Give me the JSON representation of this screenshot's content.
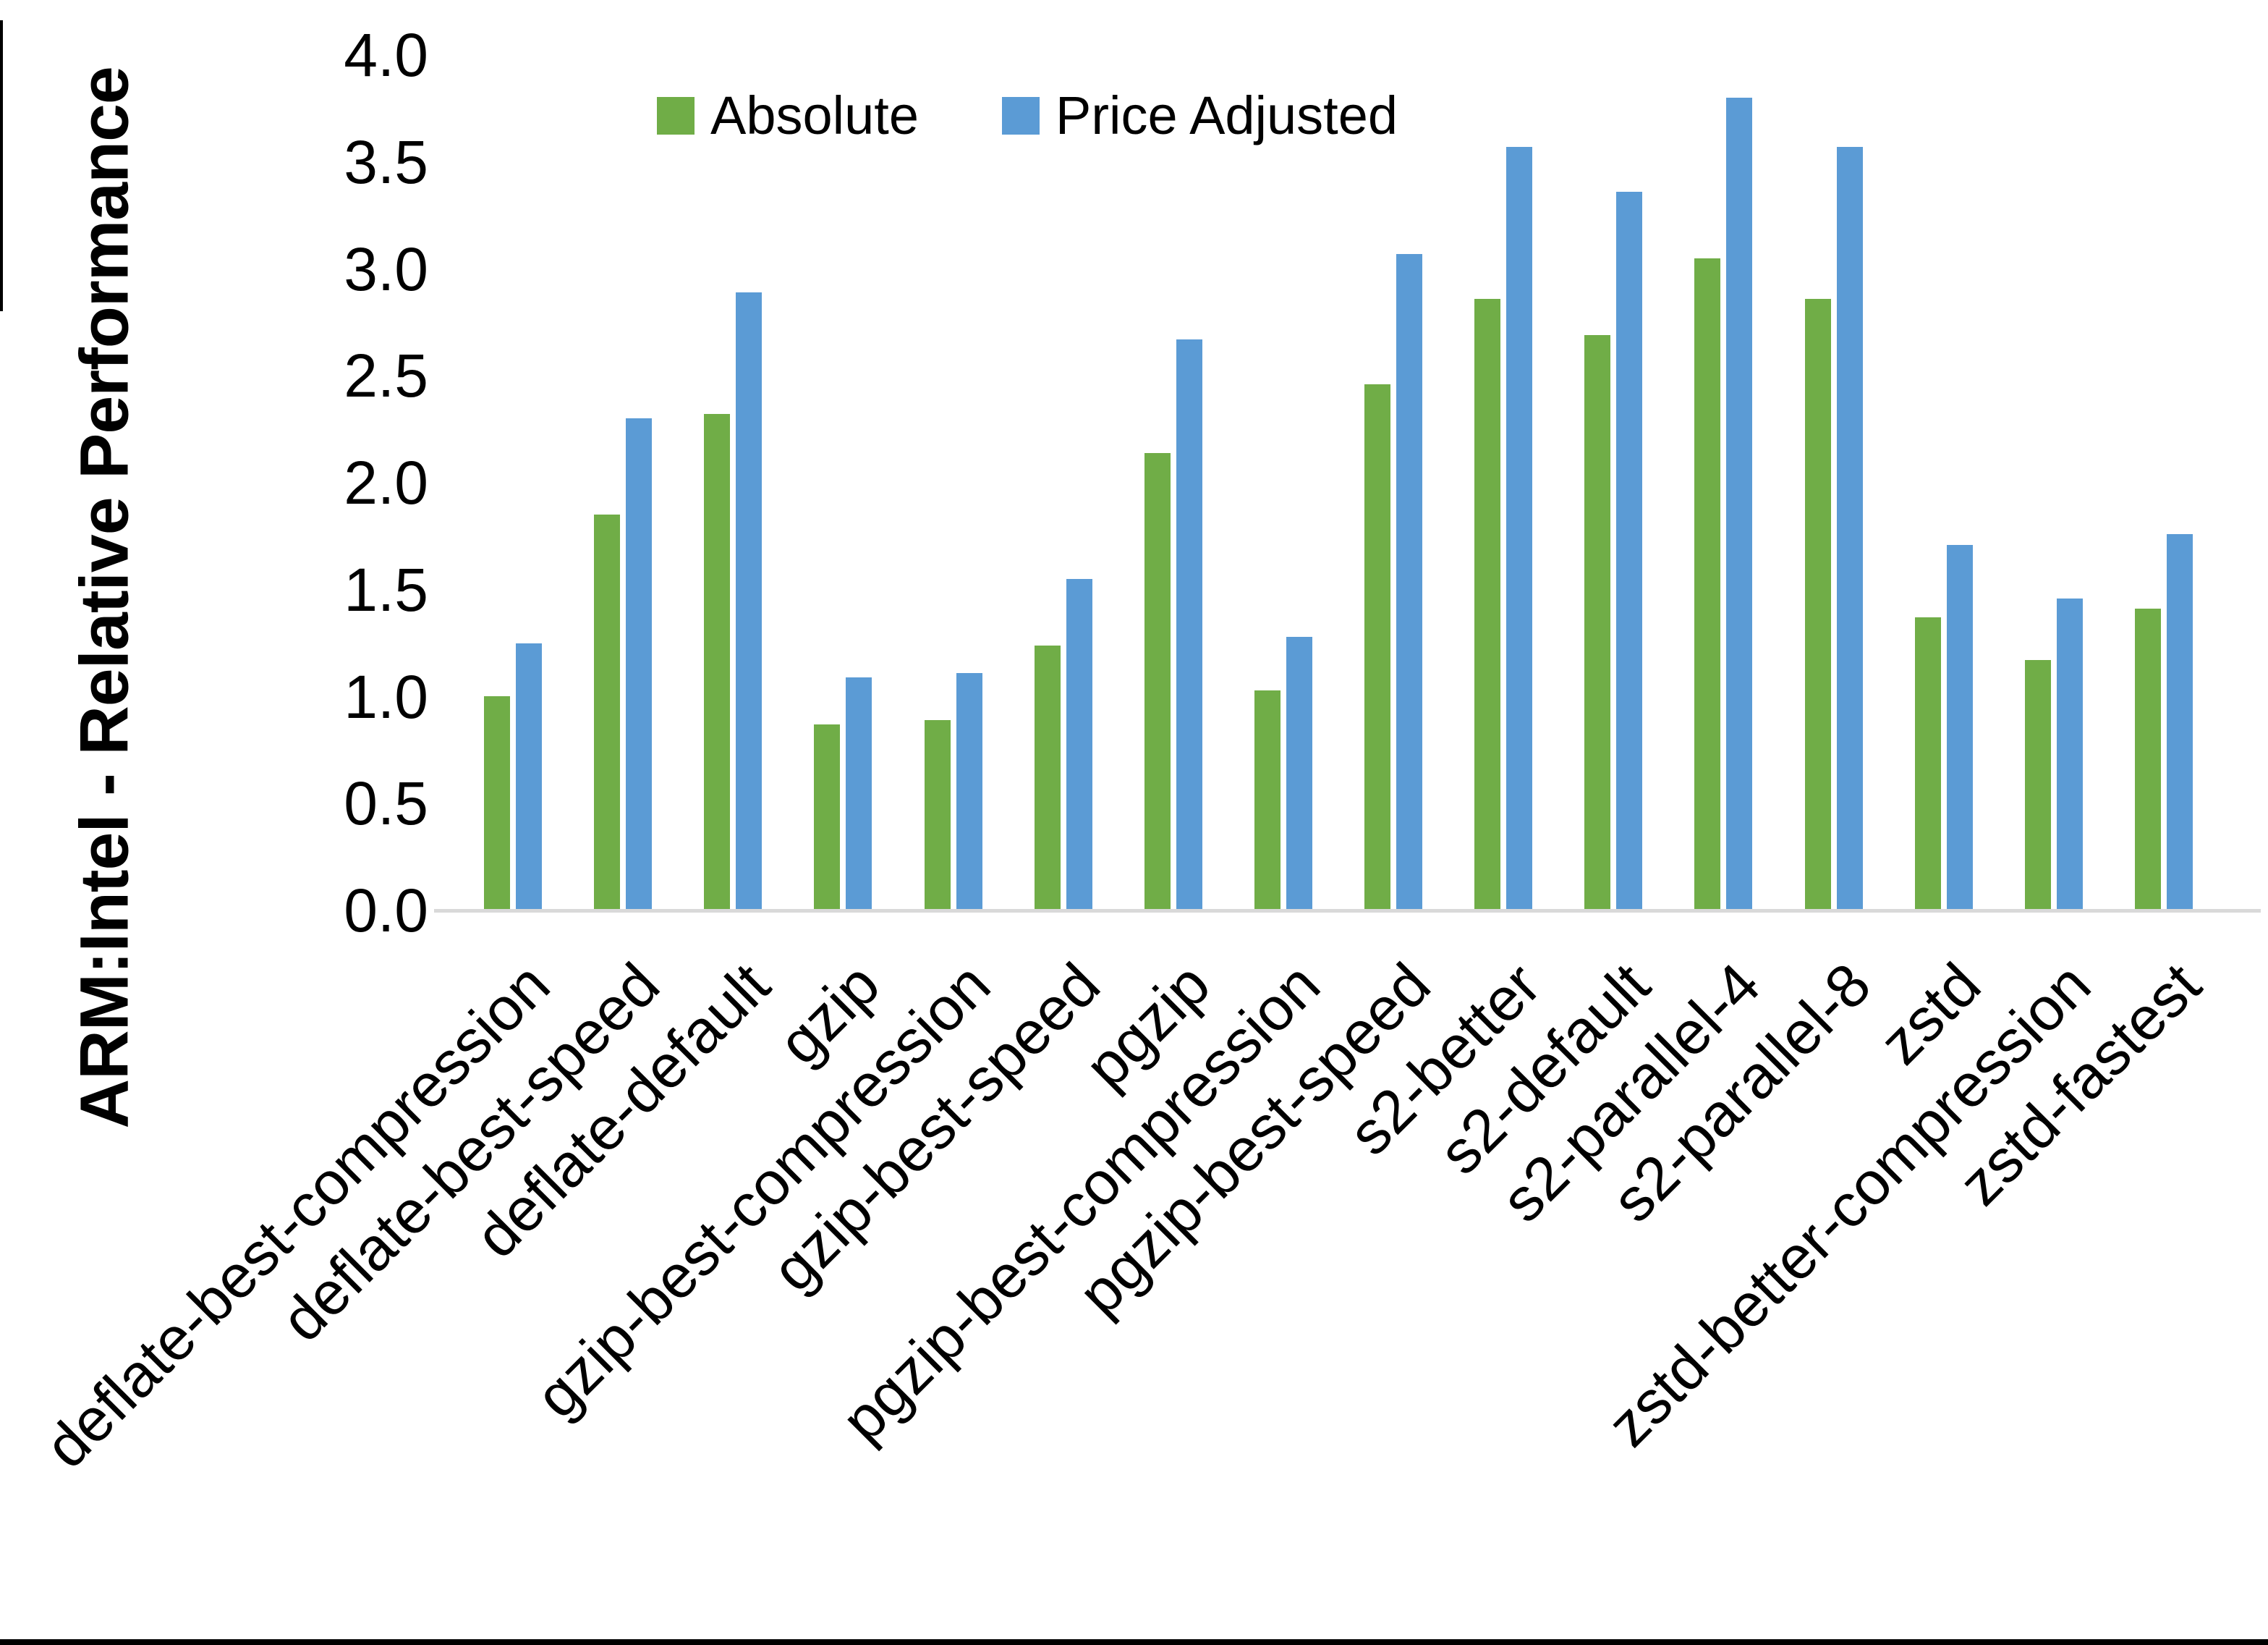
{
  "page": {
    "background": "#ffffff",
    "bottom_border_color": "#000000",
    "left_edge_mark_color": "#000000"
  },
  "legend": {
    "items": [
      {
        "label": "Absolute",
        "color": "#70AD47"
      },
      {
        "label": "Price Adjusted",
        "color": "#5B9BD5"
      }
    ]
  },
  "chart_data": {
    "type": "bar",
    "title": "",
    "xlabel": "",
    "ylabel": "ARM:Intel - Relative Performance",
    "ylim": [
      0.0,
      4.0
    ],
    "ytick_step": 0.5,
    "ytick_labels": [
      "0.0",
      "0.5",
      "1.0",
      "1.5",
      "2.0",
      "2.5",
      "3.0",
      "3.5",
      "4.0"
    ],
    "grid": false,
    "legend_position": "top-center",
    "axis_line_color": "#D9D9D9",
    "text_color": "#000000",
    "categories": [
      "deflate-best-compression",
      "deflate-best-speed",
      "deflate-default",
      "gzip",
      "gzip-best-compression",
      "gzip-best-speed",
      "pgzip",
      "pgzip-best-compression",
      "pgzip-best-speed",
      "s2-better",
      "s2-default",
      "s2-parallel-4",
      "s2-parallel-8",
      "zstd",
      "zstd-better-compression",
      "zstd-fastest"
    ],
    "series": [
      {
        "name": "Absolute",
        "color": "#70AD47",
        "values": [
          1.0,
          1.85,
          2.32,
          0.87,
          0.89,
          1.24,
          2.14,
          1.03,
          2.46,
          2.86,
          2.69,
          3.05,
          2.86,
          1.37,
          1.17,
          1.41
        ]
      },
      {
        "name": "Price Adjusted",
        "color": "#5B9BD5",
        "values": [
          1.25,
          2.3,
          2.89,
          1.09,
          1.11,
          1.55,
          2.67,
          1.28,
          3.07,
          3.57,
          3.36,
          3.8,
          3.57,
          1.71,
          1.46,
          1.76
        ]
      }
    ]
  }
}
